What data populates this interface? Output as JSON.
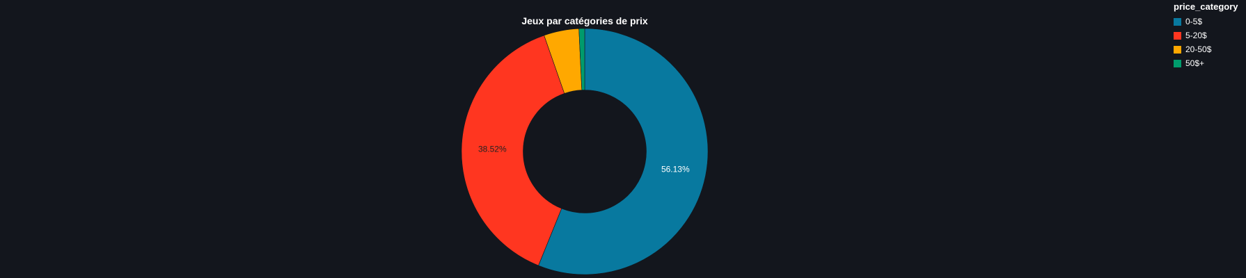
{
  "chart_data": {
    "type": "pie",
    "title": "Jeux par catégories de prix",
    "hole": 0.5,
    "legend": {
      "title": "price_category",
      "placement": "top-right"
    },
    "categories": [
      "0-5$",
      "5-20$",
      "20-50$",
      "50$+"
    ],
    "values": [
      56.13,
      38.52,
      4.6,
      0.75
    ],
    "colors": [
      "#08799f",
      "#ff3620",
      "#ffa800",
      "#009b6c"
    ],
    "labels": [
      "56.13%",
      "38.52%",
      "",
      ""
    ],
    "label_colors": [
      "#ffffff",
      "#222222",
      "#222222",
      "#ffffff"
    ]
  }
}
